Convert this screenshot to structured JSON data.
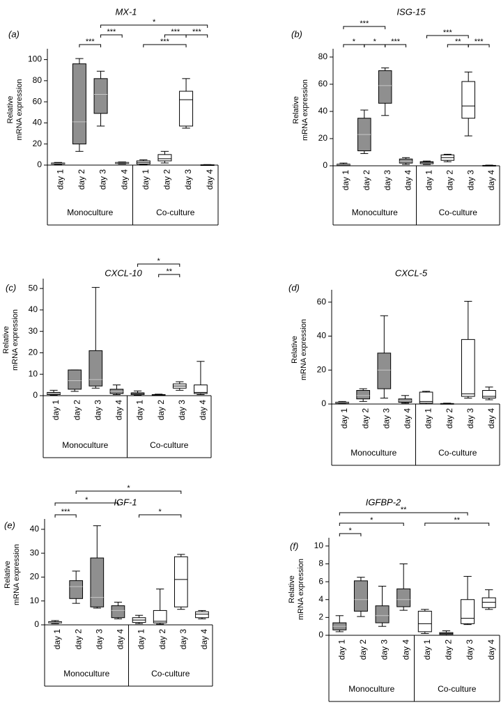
{
  "colors": {
    "monoculture_fill": "#8f8f8f",
    "coculture_fill": "#ffffff",
    "stroke": "#000000"
  },
  "chart_data": [
    {
      "type": "box",
      "panel_label": "(a)",
      "title": "MX-1",
      "ylabel": [
        "Relative",
        "mRNA expression"
      ],
      "ylim": [
        0,
        105
      ],
      "yticks": [
        0,
        20,
        40,
        60,
        80,
        100
      ],
      "categories": [
        "day 1",
        "day 2",
        "day 3",
        "day 4"
      ],
      "groups": [
        "Monoculture",
        "Co-culture"
      ],
      "series": [
        {
          "name": "Monoculture",
          "boxes": [
            {
              "min": 0.5,
              "q1": 1,
              "median": 1.5,
              "q3": 2,
              "max": 2.5
            },
            {
              "min": 13,
              "q1": 20,
              "median": 41,
              "q3": 96,
              "max": 101
            },
            {
              "min": 37,
              "q1": 49,
              "median": 67,
              "q3": 82,
              "max": 89
            },
            {
              "min": 1,
              "q1": 1.5,
              "median": 2,
              "q3": 2.5,
              "max": 3
            }
          ]
        },
        {
          "name": "Co-culture",
          "boxes": [
            {
              "min": 0.5,
              "q1": 1,
              "median": 2.5,
              "q3": 4,
              "max": 5
            },
            {
              "min": 2,
              "q1": 4,
              "median": 6,
              "q3": 10,
              "max": 13
            },
            {
              "min": 35,
              "q1": 37,
              "median": 62,
              "q3": 70,
              "max": 82
            },
            {
              "min": 0,
              "q1": 0.1,
              "median": 0.2,
              "q3": 0.3,
              "max": 0.5
            }
          ]
        }
      ],
      "significance": [
        {
          "from": 1,
          "to": 2,
          "label": "***",
          "level": 0
        },
        {
          "from": 2,
          "to": 3,
          "label": "***",
          "level": 1
        },
        {
          "from": 2,
          "to": 7,
          "label": "*",
          "level": 2
        },
        {
          "from": 4,
          "to": 6,
          "label": "***",
          "level": 0
        },
        {
          "from": 5,
          "to": 6,
          "label": "***",
          "level": 1
        },
        {
          "from": 6,
          "to": 7,
          "label": "***",
          "level": 1
        }
      ]
    },
    {
      "type": "box",
      "panel_label": "(b)",
      "title": "ISG-15",
      "ylabel": [
        "Relative",
        "mRNA expression"
      ],
      "ylim": [
        0,
        82
      ],
      "yticks": [
        0,
        20,
        40,
        60,
        80
      ],
      "categories": [
        "day 1",
        "day 2",
        "day 3",
        "day 4"
      ],
      "groups": [
        "Monoculture",
        "Co-culture"
      ],
      "series": [
        {
          "name": "Monoculture",
          "boxes": [
            {
              "min": 0,
              "q1": 0.3,
              "median": 0.7,
              "q3": 1.2,
              "max": 2
            },
            {
              "min": 9,
              "q1": 11,
              "median": 23,
              "q3": 35,
              "max": 41
            },
            {
              "min": 37,
              "q1": 46,
              "median": 59,
              "q3": 70,
              "max": 72
            },
            {
              "min": 1,
              "q1": 2,
              "median": 3,
              "q3": 5,
              "max": 6
            }
          ]
        },
        {
          "name": "Co-culture",
          "boxes": [
            {
              "min": 1,
              "q1": 1.5,
              "median": 2.5,
              "q3": 3,
              "max": 3.5
            },
            {
              "min": 3,
              "q1": 4,
              "median": 6,
              "q3": 8,
              "max": 8.5
            },
            {
              "min": 22,
              "q1": 35,
              "median": 44,
              "q3": 62,
              "max": 69
            },
            {
              "min": 0,
              "q1": 0.1,
              "median": 0.2,
              "q3": 0.3,
              "max": 0.5
            }
          ]
        }
      ],
      "significance": [
        {
          "from": 0,
          "to": 2,
          "label": "***",
          "level": 2
        },
        {
          "from": 0,
          "to": 1,
          "label": "*",
          "level": 0
        },
        {
          "from": 1,
          "to": 2,
          "label": "*",
          "level": 0
        },
        {
          "from": 2,
          "to": 3,
          "label": "***",
          "level": 0
        },
        {
          "from": 4,
          "to": 6,
          "label": "***",
          "level": 1
        },
        {
          "from": 5,
          "to": 6,
          "label": "**",
          "level": 0
        },
        {
          "from": 6,
          "to": 7,
          "label": "***",
          "level": 0
        }
      ]
    },
    {
      "type": "box",
      "panel_label": "(c)",
      "title": "CXCL-10",
      "ylabel": [
        "Relative",
        "mRNA expression"
      ],
      "ylim": [
        0,
        52
      ],
      "yticks": [
        0,
        10,
        20,
        30,
        40,
        50
      ],
      "categories": [
        "day 1",
        "day 2",
        "day 3",
        "day 4"
      ],
      "groups": [
        "Monoculture",
        "Co-culture"
      ],
      "series": [
        {
          "name": "Monoculture",
          "boxes": [
            {
              "min": 0.2,
              "q1": 0.5,
              "median": 1,
              "q3": 1.5,
              "max": 2.5
            },
            {
              "min": 2,
              "q1": 3,
              "median": 7,
              "q3": 12,
              "max": 12
            },
            {
              "min": 3.5,
              "q1": 4.5,
              "median": 7.5,
              "q3": 21,
              "max": 50.5
            },
            {
              "min": 0.5,
              "q1": 1,
              "median": 2,
              "q3": 3,
              "max": 5
            }
          ]
        },
        {
          "name": "Co-culture",
          "boxes": [
            {
              "min": 0.2,
              "q1": 0.5,
              "median": 1,
              "q3": 1.3,
              "max": 2.2
            },
            {
              "min": 0.1,
              "q1": 0.2,
              "median": 0.3,
              "q3": 0.5,
              "max": 0.7
            },
            {
              "min": 2.5,
              "q1": 3.5,
              "median": 4.5,
              "q3": 5.5,
              "max": 6.5
            },
            {
              "min": 0.5,
              "q1": 1,
              "median": 1.5,
              "q3": 5,
              "max": 16
            }
          ]
        }
      ],
      "significance": [
        {
          "from": 4,
          "to": 6,
          "label": "*",
          "level": 1
        },
        {
          "from": 5,
          "to": 6,
          "label": "**",
          "level": 0
        }
      ]
    },
    {
      "type": "box",
      "panel_label": "(d)",
      "title": "CXCL-5",
      "ylabel": [
        "Relative",
        "mRNA expression"
      ],
      "ylim": [
        0,
        64
      ],
      "yticks": [
        0,
        20,
        40,
        60
      ],
      "categories": [
        "day 1",
        "day 2",
        "day 3",
        "day 4"
      ],
      "groups": [
        "Monoculture",
        "Co-culture"
      ],
      "series": [
        {
          "name": "Monoculture",
          "boxes": [
            {
              "min": 0.2,
              "q1": 0.5,
              "median": 0.8,
              "q3": 1.1,
              "max": 1.5
            },
            {
              "min": 1.5,
              "q1": 3,
              "median": 5,
              "q3": 8,
              "max": 9
            },
            {
              "min": 3.5,
              "q1": 9,
              "median": 20,
              "q3": 30,
              "max": 52
            },
            {
              "min": 0.5,
              "q1": 1,
              "median": 2,
              "q3": 3,
              "max": 5
            }
          ]
        },
        {
          "name": "Co-culture",
          "boxes": [
            {
              "min": 0,
              "q1": 0.5,
              "median": 1.5,
              "q3": 7,
              "max": 7.5
            },
            {
              "min": 0,
              "q1": 0.1,
              "median": 0.2,
              "q3": 0.3,
              "max": 0.5
            },
            {
              "min": 3.5,
              "q1": 4.5,
              "median": 6,
              "q3": 38,
              "max": 60.5
            },
            {
              "min": 2.5,
              "q1": 3.5,
              "median": 4.5,
              "q3": 8,
              "max": 10
            }
          ]
        }
      ],
      "significance": []
    },
    {
      "type": "box",
      "panel_label": "(e)",
      "title": "IGF-1",
      "ylabel": [
        "Relative",
        "mRNA expression"
      ],
      "ylim": [
        0,
        42
      ],
      "yticks": [
        0,
        10,
        20,
        30,
        40
      ],
      "categories": [
        "day 1",
        "day 2",
        "day 3",
        "day 4"
      ],
      "groups": [
        "Monoculture",
        "Co-culture"
      ],
      "series": [
        {
          "name": "Monoculture",
          "boxes": [
            {
              "min": 0.5,
              "q1": 0.8,
              "median": 1,
              "q3": 1.3,
              "max": 1.8
            },
            {
              "min": 9,
              "q1": 11,
              "median": 16,
              "q3": 18.5,
              "max": 22.5
            },
            {
              "min": 7,
              "q1": 7.5,
              "median": 11.5,
              "q3": 28,
              "max": 41.5
            },
            {
              "min": 2.5,
              "q1": 3,
              "median": 6,
              "q3": 8,
              "max": 9.5
            }
          ]
        },
        {
          "name": "Co-culture",
          "boxes": [
            {
              "min": 0.5,
              "q1": 1,
              "median": 2,
              "q3": 3,
              "max": 4
            },
            {
              "min": 0.3,
              "q1": 0.8,
              "median": 1.5,
              "q3": 6,
              "max": 15
            },
            {
              "min": 6.5,
              "q1": 7.5,
              "median": 19,
              "q3": 28.5,
              "max": 29.5
            },
            {
              "min": 2.5,
              "q1": 3,
              "median": 4.5,
              "q3": 5.5,
              "max": 6
            }
          ]
        }
      ],
      "significance": [
        {
          "from": 1,
          "to": 6,
          "label": "*",
          "level": 2
        },
        {
          "from": 0,
          "to": 3,
          "label": "*",
          "level": 1
        },
        {
          "from": 0,
          "to": 1,
          "label": "***",
          "level": 0
        },
        {
          "from": 4,
          "to": 6,
          "label": "*",
          "level": 0
        }
      ]
    },
    {
      "type": "box",
      "panel_label": "(f)",
      "title": "IGFBP-2",
      "ylabel": [
        "Relative",
        "mRNA expression"
      ],
      "ylim": [
        0,
        10.3
      ],
      "yticks": [
        0,
        2,
        4,
        6,
        8,
        10
      ],
      "categories": [
        "day 1",
        "day 2",
        "day 3",
        "day 4"
      ],
      "groups": [
        "Monoculture",
        "Co-culture"
      ],
      "series": [
        {
          "name": "Monoculture",
          "boxes": [
            {
              "min": 0.4,
              "q1": 0.6,
              "median": 1,
              "q3": 1.4,
              "max": 2.2
            },
            {
              "min": 2.1,
              "q1": 2.7,
              "median": 4,
              "q3": 6.1,
              "max": 6.5
            },
            {
              "min": 1,
              "q1": 1.4,
              "median": 2.2,
              "q3": 3.3,
              "max": 5.5
            },
            {
              "min": 2.8,
              "q1": 3.2,
              "median": 4,
              "q3": 5.2,
              "max": 8
            }
          ]
        },
        {
          "name": "Co-culture",
          "boxes": [
            {
              "min": 0.2,
              "q1": 0.4,
              "median": 1.3,
              "q3": 2.7,
              "max": 2.9
            },
            {
              "min": 0,
              "q1": 0.1,
              "median": 0.2,
              "q3": 0.3,
              "max": 0.5
            },
            {
              "min": 1.2,
              "q1": 1.3,
              "median": 1.9,
              "q3": 4,
              "max": 6.6
            },
            {
              "min": 2.9,
              "q1": 3.1,
              "median": 3.7,
              "q3": 4.2,
              "max": 5.1
            }
          ]
        }
      ],
      "significance": [
        {
          "from": 0,
          "to": 6,
          "label": "**",
          "level": 2
        },
        {
          "from": 0,
          "to": 3,
          "label": "*",
          "level": 1
        },
        {
          "from": 0,
          "to": 1,
          "label": "*",
          "level": 0
        },
        {
          "from": 4,
          "to": 7,
          "label": "**",
          "level": 1
        }
      ]
    }
  ]
}
